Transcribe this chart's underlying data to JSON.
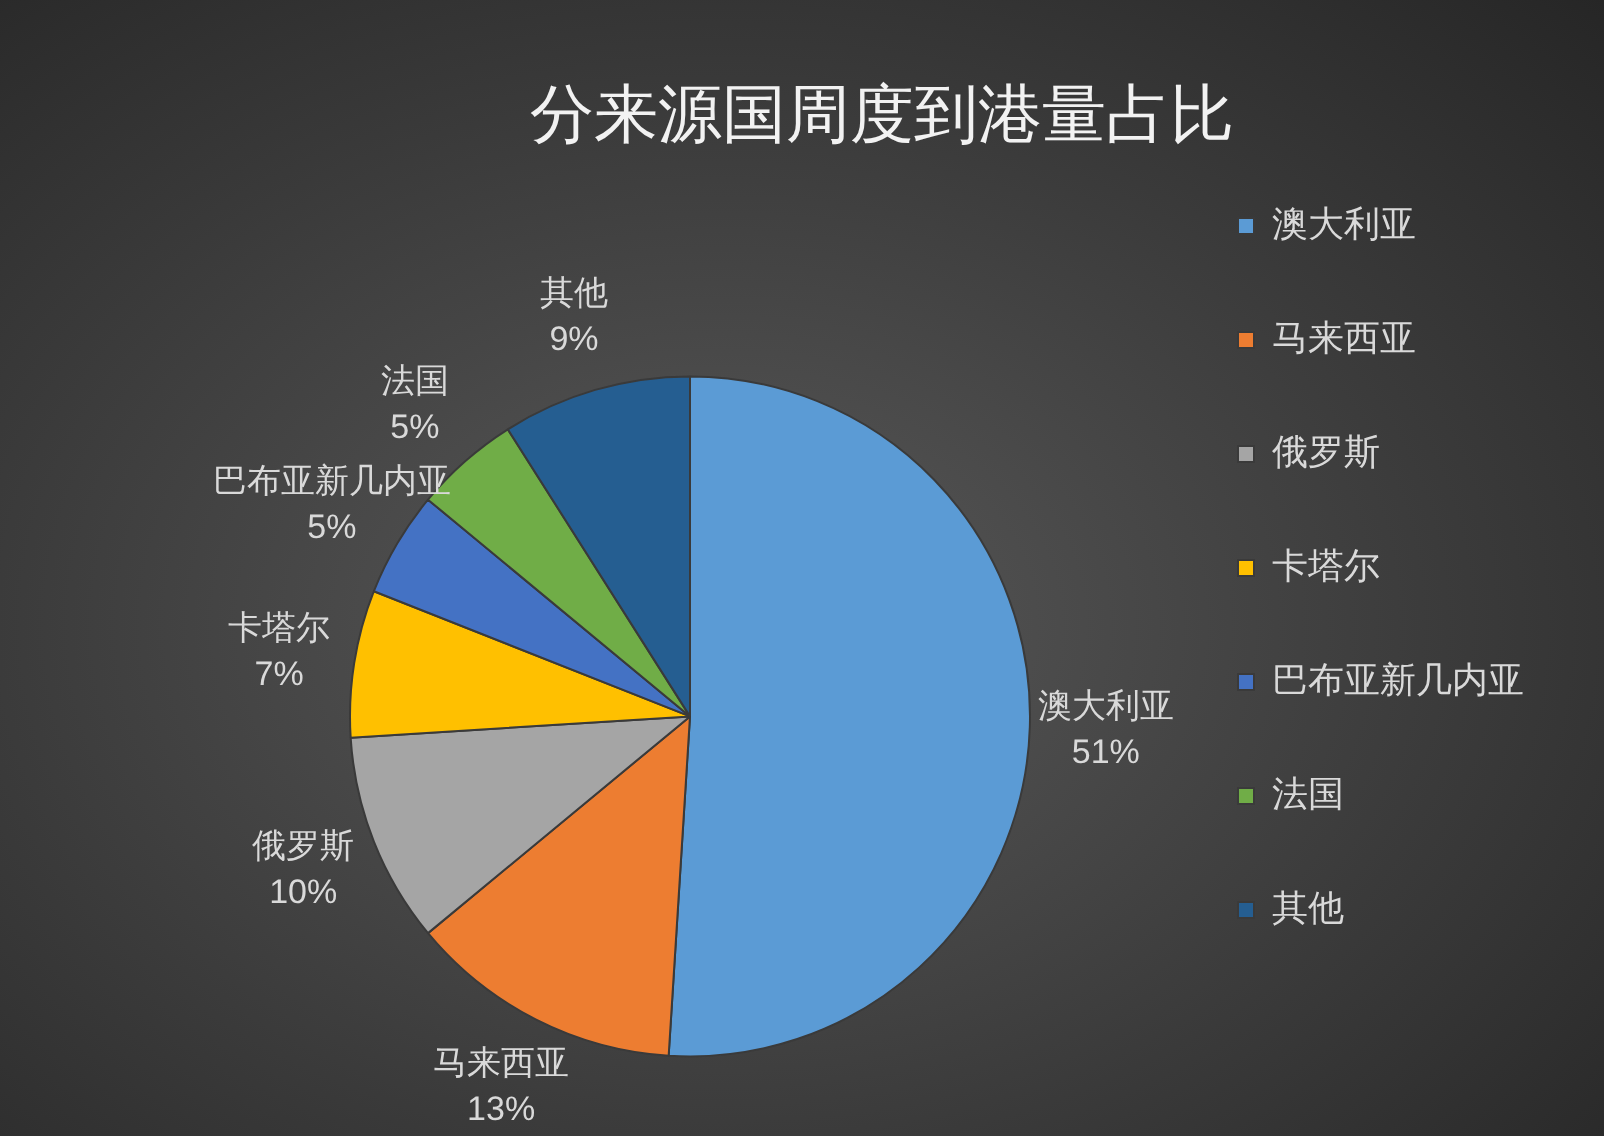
{
  "chart_data": {
    "type": "pie",
    "title": "分来源国周度到港量占比",
    "categories": [
      "澳大利亚",
      "马来西亚",
      "俄罗斯",
      "卡塔尔",
      "巴布亚新几内亚",
      "法国",
      "其他"
    ],
    "values": [
      51,
      13,
      10,
      7,
      5,
      5,
      9
    ],
    "colors": [
      "#5b9bd5",
      "#ed7d31",
      "#a5a5a5",
      "#ffc000",
      "#4472c4",
      "#70ad47",
      "#255e91"
    ],
    "value_labels": [
      "51%",
      "13%",
      "10%",
      "7%",
      "5%",
      "5%",
      "9%"
    ],
    "legend": "right"
  }
}
